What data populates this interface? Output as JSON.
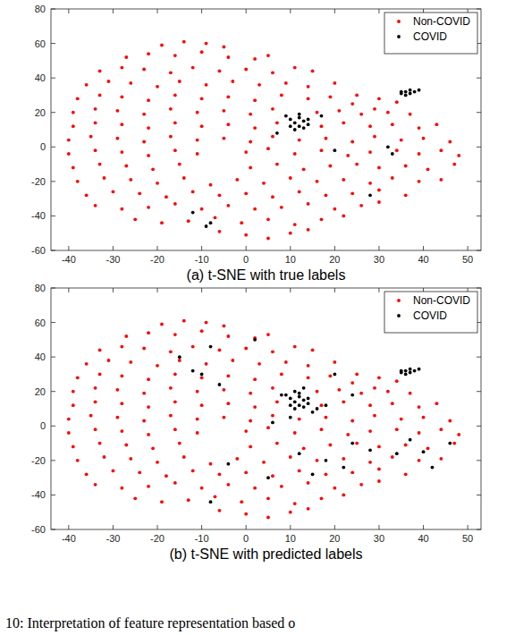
{
  "chart_data": [
    {
      "type": "scatter",
      "title": "(a) t-SNE with true labels",
      "xlim": [
        -44,
        53
      ],
      "xticks": [
        -40,
        -30,
        -20,
        -10,
        0,
        10,
        20,
        30,
        40,
        50
      ],
      "ylim": [
        -60,
        80
      ],
      "yticks": [
        -60,
        -40,
        -20,
        0,
        20,
        40,
        60,
        80
      ],
      "grid": false,
      "legend": "northeast",
      "marker": "point",
      "series": [
        {
          "name": "Non-COVID",
          "color": "#ff0000",
          "x": [
            -19,
            -14,
            -9,
            -5,
            -27,
            -22,
            -16,
            -10,
            -4,
            2,
            5,
            -33,
            -28,
            -23,
            -17,
            -12,
            -6,
            0,
            6,
            11,
            15,
            -36,
            -31,
            -26,
            -20,
            -15,
            -9,
            -3,
            3,
            9,
            14,
            20,
            25,
            30,
            34,
            -38,
            -33,
            -28,
            -22,
            -16,
            -10,
            -4,
            2,
            8,
            14,
            19,
            24,
            29,
            -39,
            -34,
            -29,
            -23,
            -17,
            -11,
            -5,
            1,
            6,
            16,
            21,
            26,
            32,
            37,
            -39,
            -34,
            -28,
            -22,
            -16,
            -10,
            -4,
            2,
            7,
            17,
            22,
            28,
            33,
            39,
            43,
            -40,
            -35,
            -29,
            -23,
            -17,
            -11,
            -5,
            1,
            6,
            12,
            18,
            24,
            29,
            35,
            40,
            46,
            -40,
            -34,
            -28,
            -22,
            -16,
            -11,
            0,
            5,
            11,
            17,
            23,
            28,
            34,
            39,
            44,
            48,
            -39,
            -33,
            -27,
            -21,
            -15,
            1,
            7,
            13,
            19,
            25,
            30,
            36,
            41,
            47,
            -38,
            -32,
            -26,
            -20,
            -14,
            -8,
            -2,
            4,
            10,
            16,
            22,
            28,
            33,
            39,
            44,
            -36,
            -30,
            -24,
            -18,
            -12,
            -6,
            0,
            6,
            12,
            18,
            24,
            30,
            36,
            -34,
            -28,
            -22,
            -16,
            -10,
            -4,
            2,
            8,
            14,
            20,
            26,
            30,
            -25,
            -19,
            -13,
            -7,
            -1,
            5,
            11,
            17,
            22,
            -6,
            0,
            5,
            10,
            14
          ],
          "values": [
            59,
            61,
            60,
            58,
            52,
            54,
            53,
            55,
            52,
            51,
            53,
            44,
            46,
            45,
            43,
            46,
            44,
            45,
            43,
            46,
            44,
            36,
            38,
            37,
            35,
            38,
            36,
            38,
            36,
            37,
            35,
            37,
            30,
            28,
            26,
            28,
            30,
            29,
            27,
            30,
            28,
            29,
            27,
            30,
            28,
            29,
            25,
            22,
            20,
            22,
            21,
            19,
            22,
            20,
            21,
            19,
            22,
            20,
            21,
            19,
            20,
            19,
            12,
            14,
            13,
            11,
            14,
            12,
            13,
            11,
            14,
            12,
            14,
            12,
            13,
            11,
            13,
            4,
            6,
            5,
            3,
            6,
            4,
            5,
            3,
            6,
            4,
            5,
            3,
            6,
            4,
            5,
            3,
            -4,
            -2,
            -3,
            -5,
            -2,
            -4,
            -3,
            -1,
            -4,
            -2,
            -5,
            -3,
            -2,
            -4,
            -2,
            -5,
            -12,
            -10,
            -11,
            -13,
            -10,
            -12,
            -10,
            -13,
            -11,
            -10,
            -12,
            -11,
            -13,
            -10,
            -20,
            -18,
            -19,
            -21,
            -18,
            -22,
            -19,
            -21,
            -18,
            -20,
            -19,
            -21,
            -18,
            -20,
            -19,
            -28,
            -26,
            -27,
            -29,
            -26,
            -28,
            -27,
            -29,
            -26,
            -28,
            -27,
            -25,
            -28,
            -34,
            -36,
            -35,
            -33,
            -36,
            -34,
            -36,
            -35,
            -33,
            -36,
            -34,
            -32,
            -42,
            -44,
            -43,
            -41,
            -44,
            -42,
            -45,
            -42,
            -40,
            -49,
            -51,
            -53,
            -50,
            -48
          ]
        },
        {
          "name": "COVID",
          "color": "#000000",
          "x": [
            35,
            36,
            37,
            38,
            36,
            37,
            39,
            35,
            10,
            11,
            12,
            13,
            12,
            14,
            11,
            13,
            9,
            12,
            14,
            10,
            -8,
            -9,
            7,
            17,
            32,
            33,
            20,
            -12,
            28
          ],
          "values": [
            31,
            32,
            33,
            32,
            30,
            31,
            33,
            32,
            16,
            14,
            12,
            15,
            17,
            13,
            10,
            11,
            18,
            19,
            16,
            12,
            -44,
            -46,
            8,
            18,
            0,
            -4,
            -2,
            -38,
            -28
          ]
        }
      ]
    },
    {
      "type": "scatter",
      "title": "(b) t-SNE with predicted labels",
      "xlim": [
        -44,
        53
      ],
      "xticks": [
        -40,
        -30,
        -20,
        -10,
        0,
        10,
        20,
        30,
        40,
        50
      ],
      "ylim": [
        -60,
        80
      ],
      "yticks": [
        -60,
        -40,
        -20,
        0,
        20,
        40,
        60,
        80
      ],
      "grid": false,
      "legend": "northeast",
      "marker": "point",
      "series": [
        {
          "name": "Non-COVID",
          "color": "#ff0000",
          "x": [
            -19,
            -14,
            -9,
            -5,
            -27,
            -22,
            -16,
            -10,
            -4,
            2,
            5,
            -33,
            -28,
            -23,
            -17,
            -12,
            -6,
            0,
            6,
            11,
            15,
            -36,
            -31,
            -26,
            -20,
            -15,
            -9,
            -3,
            3,
            9,
            14,
            20,
            25,
            30,
            34,
            -38,
            -33,
            -28,
            -22,
            -16,
            -10,
            -4,
            2,
            8,
            14,
            19,
            24,
            29,
            -39,
            -34,
            -29,
            -23,
            -17,
            -11,
            -5,
            1,
            6,
            16,
            21,
            26,
            32,
            37,
            -39,
            -34,
            -28,
            -22,
            -16,
            -10,
            -4,
            2,
            7,
            17,
            22,
            28,
            33,
            39,
            43,
            -40,
            -35,
            -29,
            -23,
            -17,
            -11,
            -5,
            1,
            6,
            12,
            18,
            24,
            29,
            35,
            40,
            46,
            -40,
            -34,
            -28,
            -22,
            -16,
            -11,
            0,
            5,
            11,
            17,
            23,
            28,
            34,
            39,
            44,
            48,
            -39,
            -33,
            -27,
            -21,
            -15,
            1,
            7,
            13,
            19,
            25,
            30,
            36,
            41,
            47,
            -38,
            -32,
            -26,
            -20,
            -14,
            -8,
            -2,
            4,
            10,
            16,
            22,
            28,
            33,
            39,
            44,
            -36,
            -30,
            -24,
            -18,
            -12,
            -6,
            0,
            6,
            12,
            18,
            24,
            30,
            36,
            -34,
            -28,
            -22,
            -16,
            -10,
            -4,
            2,
            8,
            14,
            20,
            26,
            30,
            -25,
            -19,
            -13,
            -7,
            -1,
            5,
            11,
            17,
            22,
            -6,
            0,
            5,
            10,
            14
          ],
          "values": [
            59,
            61,
            60,
            58,
            52,
            54,
            53,
            55,
            52,
            51,
            53,
            44,
            46,
            45,
            43,
            46,
            44,
            45,
            43,
            46,
            44,
            36,
            38,
            37,
            35,
            38,
            36,
            38,
            36,
            37,
            35,
            37,
            30,
            28,
            26,
            28,
            30,
            29,
            27,
            30,
            28,
            29,
            27,
            30,
            28,
            29,
            25,
            22,
            20,
            22,
            21,
            19,
            22,
            20,
            21,
            19,
            22,
            20,
            21,
            19,
            20,
            19,
            12,
            14,
            13,
            11,
            14,
            12,
            13,
            11,
            14,
            12,
            14,
            12,
            13,
            11,
            13,
            4,
            6,
            5,
            3,
            6,
            4,
            5,
            3,
            6,
            4,
            5,
            3,
            6,
            4,
            5,
            3,
            -4,
            -2,
            -3,
            -5,
            -2,
            -4,
            -3,
            -1,
            -4,
            -2,
            -5,
            -3,
            -2,
            -4,
            -2,
            -5,
            -12,
            -10,
            -11,
            -13,
            -10,
            -12,
            -10,
            -13,
            -11,
            -10,
            -12,
            -11,
            -13,
            -10,
            -20,
            -18,
            -19,
            -21,
            -18,
            -22,
            -19,
            -21,
            -18,
            -20,
            -19,
            -21,
            -18,
            -20,
            -19,
            -28,
            -26,
            -27,
            -29,
            -26,
            -28,
            -27,
            -29,
            -26,
            -28,
            -27,
            -25,
            -28,
            -34,
            -36,
            -35,
            -33,
            -36,
            -34,
            -36,
            -35,
            -33,
            -36,
            -34,
            -32,
            -42,
            -44,
            -43,
            -41,
            -44,
            -42,
            -45,
            -42,
            -40,
            -49,
            -51,
            -53,
            -50,
            -48
          ]
        },
        {
          "name": "COVID",
          "color": "#000000",
          "x": [
            35,
            36,
            37,
            38,
            36,
            37,
            39,
            35,
            10,
            11,
            12,
            13,
            12,
            14,
            11,
            13,
            9,
            12,
            14,
            10,
            8,
            15,
            16,
            18,
            10,
            6,
            13,
            11,
            -10,
            -12,
            -6,
            -8,
            -15,
            2,
            18,
            12,
            15,
            22,
            24,
            28,
            34,
            37,
            40,
            46,
            42,
            20,
            24,
            -4,
            5,
            -8
          ],
          "values": [
            31,
            32,
            33,
            32,
            30,
            31,
            33,
            32,
            16,
            14,
            12,
            15,
            17,
            13,
            10,
            11,
            18,
            19,
            16,
            12,
            18,
            8,
            10,
            12,
            5,
            2,
            22,
            20,
            30,
            32,
            24,
            46,
            40,
            50,
            -20,
            -16,
            -28,
            -24,
            -10,
            -14,
            -16,
            -8,
            -15,
            -10,
            -24,
            30,
            18,
            -22,
            -30,
            -44
          ]
        }
      ]
    }
  ],
  "caption": "10: Interpretation of feature representation based o"
}
